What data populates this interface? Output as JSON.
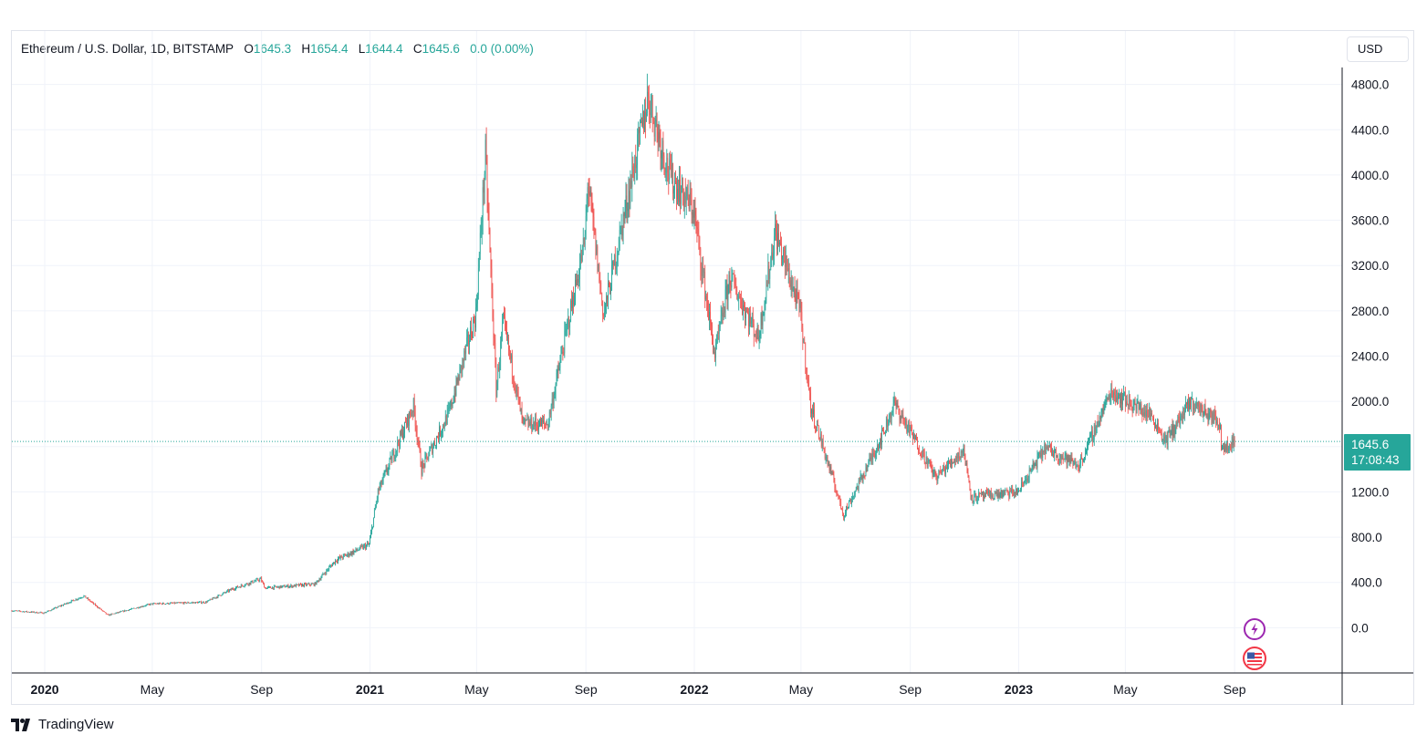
{
  "legend": {
    "symbol": "Ethereum / U.S. Dollar, 1D, BITSTAMP",
    "open_label": "O",
    "open": "1645.3",
    "high_label": "H",
    "high": "1654.4",
    "low_label": "L",
    "low": "1644.4",
    "close_label": "C",
    "close": "1645.6",
    "change": "0.0 (0.00%)"
  },
  "currency_button": "USD",
  "price_badge": {
    "price": "1645.6",
    "countdown": "17:08:43"
  },
  "branding": "TradingView",
  "colors": {
    "up": "#26a69a",
    "down": "#ef5350",
    "grid": "#f0f3fa",
    "axis": "#131722"
  },
  "icons": {
    "events": [
      "lightning-event-icon",
      "us-flag-event-icon"
    ]
  },
  "chart_data": {
    "type": "candlestick",
    "title": "Ethereum / U.S. Dollar, 1D, BITSTAMP",
    "ylim": [
      -400,
      4950
    ],
    "y_ticks": [
      0,
      400,
      800,
      1200,
      1600,
      2000,
      2400,
      2800,
      3200,
      3600,
      4000,
      4400,
      4800
    ],
    "y_tick_labels": [
      "0.0",
      "400.0",
      "800.0",
      "1200.0",
      "1600.0",
      "2000.0",
      "2400.0",
      "2800.0",
      "3200.0",
      "3600.0",
      "4000.0",
      "4400.0",
      "4800.0"
    ],
    "x_range": [
      "2019-11-25",
      "2023-12-31"
    ],
    "x_ticks": [
      {
        "date": "2020-01-01",
        "label": "2020",
        "bold": true
      },
      {
        "date": "2020-05-01",
        "label": "May",
        "bold": false
      },
      {
        "date": "2020-09-01",
        "label": "Sep",
        "bold": false
      },
      {
        "date": "2021-01-01",
        "label": "2021",
        "bold": true
      },
      {
        "date": "2021-05-01",
        "label": "May",
        "bold": false
      },
      {
        "date": "2021-09-01",
        "label": "Sep",
        "bold": false
      },
      {
        "date": "2022-01-01",
        "label": "2022",
        "bold": true
      },
      {
        "date": "2022-05-01",
        "label": "May",
        "bold": false
      },
      {
        "date": "2022-09-01",
        "label": "Sep",
        "bold": false
      },
      {
        "date": "2023-01-01",
        "label": "2023",
        "bold": true
      },
      {
        "date": "2023-05-01",
        "label": "May",
        "bold": false
      },
      {
        "date": "2023-09-01",
        "label": "Sep",
        "bold": false
      }
    ],
    "last_price": 1645.6,
    "price_path_approx": [
      [
        "2019-11-25",
        150
      ],
      [
        "2019-12-31",
        130
      ],
      [
        "2020-02-14",
        280
      ],
      [
        "2020-03-12",
        110
      ],
      [
        "2020-04-30",
        210
      ],
      [
        "2020-06-30",
        225
      ],
      [
        "2020-07-31",
        345
      ],
      [
        "2020-08-31",
        430
      ],
      [
        "2020-09-05",
        350
      ],
      [
        "2020-10-31",
        385
      ],
      [
        "2020-11-24",
        600
      ],
      [
        "2020-12-31",
        735
      ],
      [
        "2021-01-10",
        1200
      ],
      [
        "2021-02-19",
        1960
      ],
      [
        "2021-02-28",
        1400
      ],
      [
        "2021-03-31",
        1900
      ],
      [
        "2021-04-30",
        2770
      ],
      [
        "2021-05-11",
        4170
      ],
      [
        "2021-05-23",
        2100
      ],
      [
        "2021-05-31",
        2700
      ],
      [
        "2021-06-22",
        1800
      ],
      [
        "2021-07-20",
        1800
      ],
      [
        "2021-08-31",
        3430
      ],
      [
        "2021-09-03",
        3950
      ],
      [
        "2021-09-21",
        2760
      ],
      [
        "2021-10-31",
        4300
      ],
      [
        "2021-11-10",
        4700
      ],
      [
        "2021-12-04",
        4000
      ],
      [
        "2021-12-31",
        3700
      ],
      [
        "2022-01-24",
        2400
      ],
      [
        "2022-02-10",
        3100
      ],
      [
        "2022-03-14",
        2560
      ],
      [
        "2022-04-02",
        3500
      ],
      [
        "2022-04-30",
        2800
      ],
      [
        "2022-05-12",
        1950
      ],
      [
        "2022-06-18",
        1000
      ],
      [
        "2022-07-31",
        1690
      ],
      [
        "2022-08-14",
        1980
      ],
      [
        "2022-09-30",
        1330
      ],
      [
        "2022-10-31",
        1570
      ],
      [
        "2022-11-09",
        1150
      ],
      [
        "2022-12-31",
        1200
      ],
      [
        "2023-01-31",
        1590
      ],
      [
        "2023-03-10",
        1430
      ],
      [
        "2023-04-15",
        2090
      ],
      [
        "2023-05-31",
        1870
      ],
      [
        "2023-06-15",
        1650
      ],
      [
        "2023-07-14",
        1990
      ],
      [
        "2023-08-16",
        1810
      ],
      [
        "2023-08-17",
        1600
      ],
      [
        "2023-09-01",
        1645.6
      ]
    ]
  }
}
